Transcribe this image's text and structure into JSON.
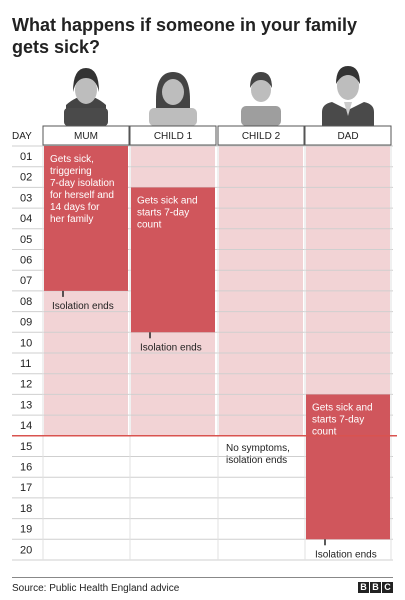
{
  "title": "What happens if someone in your family gets sick?",
  "day_header": "DAY",
  "days": [
    "01",
    "02",
    "03",
    "04",
    "05",
    "06",
    "07",
    "08",
    "09",
    "10",
    "11",
    "12",
    "13",
    "14",
    "15",
    "16",
    "17",
    "18",
    "19",
    "20"
  ],
  "members": [
    {
      "name": "MUM",
      "icon": "woman-avatar-icon",
      "isolation_start": 1,
      "isolation_end": 14,
      "sick_start": 1,
      "sick_end": 7,
      "note": [
        "Gets sick,",
        "triggering",
        "7-day isolation",
        "for herself and",
        "14 days for",
        "her family"
      ],
      "end_label": "Isolation ends",
      "end_day": 7
    },
    {
      "name": "CHILD 1",
      "icon": "girl-avatar-icon",
      "isolation_start": 1,
      "isolation_end": 14,
      "sick_start": 3,
      "sick_end": 9,
      "note": [
        "Gets sick and",
        "starts 7-day",
        "count"
      ],
      "end_label": "Isolation ends",
      "end_day": 9
    },
    {
      "name": "CHILD 2",
      "icon": "boy-avatar-icon",
      "isolation_start": 1,
      "isolation_end": 14,
      "sick_start": null,
      "sick_end": null,
      "note": [],
      "end_label": [
        "No symptoms,",
        "isolation ends"
      ],
      "end_day": 14
    },
    {
      "name": "DAD",
      "icon": "man-avatar-icon",
      "isolation_start": 1,
      "isolation_end": 14,
      "sick_start": 13,
      "sick_end": 19,
      "note": [
        "Gets sick and",
        "starts 7-day",
        "count"
      ],
      "end_label": "Isolation ends",
      "end_day": 19
    }
  ],
  "colors": {
    "dark": "#d0565c",
    "light": "#f2d3d5",
    "line": "#d9534f"
  },
  "source": "Source: Public Health England advice",
  "logo": [
    "B",
    "B",
    "C"
  ]
}
